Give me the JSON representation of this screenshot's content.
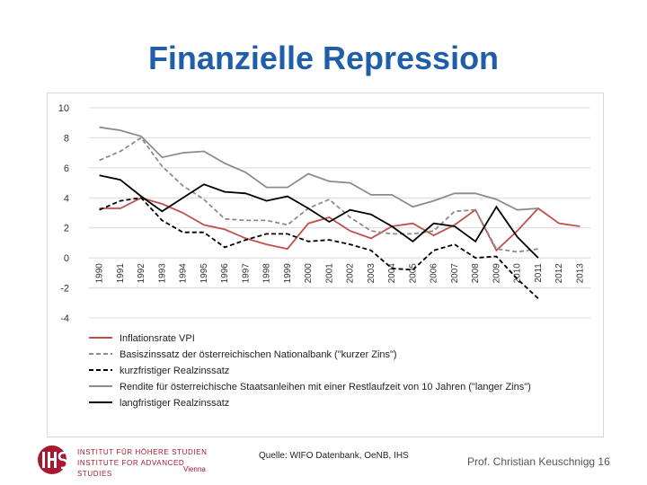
{
  "slide": {
    "title": "Finanzielle Repression",
    "source": "Quelle: WIFO Datenbank, OeNB, IHS",
    "footer": "Prof. Christian Keuschnigg 16",
    "logo": {
      "line1": "INSTITUT FÜR HÖHERE STUDIEN",
      "line2": "INSTITUTE FOR ADVANCED STUDIES",
      "city": "Vienna"
    }
  },
  "colors": {
    "title": "#1f5ea8",
    "red": "#c0504d",
    "gray": "#8c8c8c",
    "black": "#000000",
    "grid": "#d9d9d9",
    "logo_red": "#a6192e"
  },
  "chart_data": {
    "type": "line",
    "title": "",
    "xlabel": "",
    "ylabel": "",
    "ylim": [
      -4,
      10
    ],
    "yticks": [
      "10",
      "8",
      "6",
      "4",
      "2",
      "0",
      "-2",
      "-4"
    ],
    "grid": "horizontal",
    "legend_position": "bottom",
    "x": [
      "1990",
      "1991",
      "1992",
      "1993",
      "1994",
      "1995",
      "1996",
      "1997",
      "1998",
      "1999",
      "2000",
      "2001",
      "2002",
      "2003",
      "2004",
      "2005",
      "2006",
      "2007",
      "2008",
      "2009",
      "2010",
      "2011",
      "2012",
      "2013"
    ],
    "series": [
      {
        "name": "Inflationsrate VPI",
        "color": "red",
        "dash": "solid",
        "values": [
          3.3,
          3.3,
          4.0,
          3.6,
          3.0,
          2.2,
          1.9,
          1.3,
          0.9,
          0.6,
          2.3,
          2.7,
          1.8,
          1.3,
          2.1,
          2.3,
          1.5,
          2.2,
          3.2,
          0.5,
          1.8,
          3.3,
          2.3,
          2.1
        ]
      },
      {
        "name": "Basiszinssatz der österreichischen Nationalbank (\"kurzer Zins\")",
        "color": "gray",
        "dash": "dashed",
        "values": [
          6.5,
          7.1,
          8.0,
          6.1,
          4.8,
          3.9,
          2.6,
          2.5,
          2.5,
          2.2,
          3.3,
          3.9,
          2.7,
          1.8,
          1.6,
          1.6,
          1.8,
          3.1,
          3.2,
          0.6,
          0.4,
          0.6,
          null,
          null
        ]
      },
      {
        "name": "kurzfristiger Realzinssatz",
        "color": "black",
        "dash": "dashed",
        "values": [
          3.2,
          3.8,
          4.0,
          2.5,
          1.7,
          1.7,
          0.7,
          1.2,
          1.6,
          1.6,
          1.1,
          1.2,
          0.9,
          0.5,
          -0.7,
          -0.8,
          0.5,
          0.9,
          0.0,
          0.1,
          -1.4,
          -2.7,
          null,
          null
        ]
      },
      {
        "name": "Rendite für österreichische Staatsanleihen mit einer Restlaufzeit von 10 Jahren (\"langer Zins\")",
        "color": "gray",
        "dash": "solid",
        "values": [
          8.7,
          8.5,
          8.1,
          6.7,
          7.0,
          7.1,
          6.3,
          5.7,
          4.7,
          4.7,
          5.6,
          5.1,
          5.0,
          4.2,
          4.2,
          3.4,
          3.8,
          4.3,
          4.3,
          3.9,
          3.2,
          3.3,
          null,
          null
        ]
      },
      {
        "name": "langfristiger Realzinssatz",
        "color": "black",
        "dash": "solid",
        "values": [
          5.5,
          5.2,
          4.1,
          3.1,
          4.0,
          4.9,
          4.4,
          4.3,
          3.8,
          4.1,
          3.3,
          2.4,
          3.2,
          2.9,
          2.1,
          1.1,
          2.3,
          2.1,
          1.1,
          3.4,
          1.4,
          0.0,
          null,
          null
        ]
      }
    ]
  }
}
